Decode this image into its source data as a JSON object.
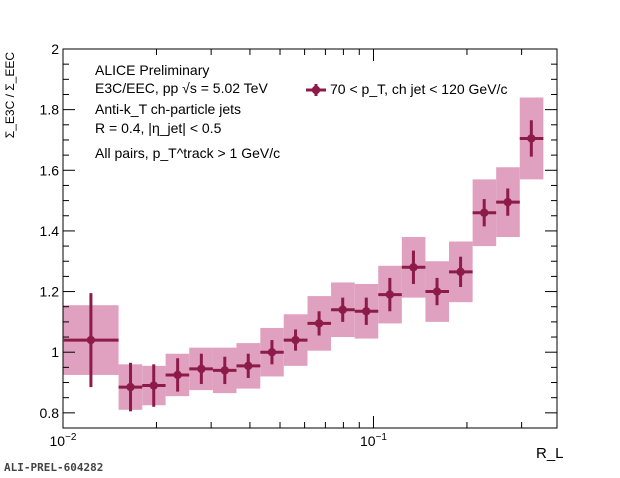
{
  "chart_data": {
    "type": "scatter",
    "x_scale": "log",
    "xlim": [
      0.01,
      0.39
    ],
    "ylim": [
      0.75,
      2.0
    ],
    "xlabel": "R_L",
    "ylabel": "Σ_E3C / Σ_EEC",
    "y_ticks": [
      "0.8",
      "1",
      "1.2",
      "1.4",
      "1.6",
      "1.8",
      "2"
    ],
    "x_ticks": [
      {
        "value": 0.01,
        "base": "10",
        "exp": "−2"
      },
      {
        "value": 0.1,
        "base": "10",
        "exp": "−1"
      }
    ],
    "annotations": {
      "line1": "ALICE Preliminary",
      "line2": "E3C/EEC, pp √s = 5.02 TeV",
      "line3": "Anti-k_T ch-particle jets",
      "line4": "R = 0.4, |η_jet| < 0.5",
      "line5": "All pairs, p_T^track > 1 GeV/c"
    },
    "legend": "70 < p_T, ch jet < 120 GeV/c",
    "watermark": "ALI-PREL-604282",
    "colors": {
      "marker": "#8c1b4a",
      "band": "#e0a0c0"
    },
    "series": [
      {
        "name": "70 < p_T, ch jet < 120 GeV/c",
        "points": [
          {
            "x": 0.0123,
            "xlo": 0.01,
            "xhi": 0.0151,
            "y": 1.04,
            "stat": 0.155,
            "sys": 0.115
          },
          {
            "x": 0.0165,
            "xlo": 0.0151,
            "xhi": 0.018,
            "y": 0.885,
            "stat": 0.08,
            "sys": 0.075
          },
          {
            "x": 0.0196,
            "xlo": 0.018,
            "xhi": 0.0214,
            "y": 0.89,
            "stat": 0.07,
            "sys": 0.065
          },
          {
            "x": 0.0234,
            "xlo": 0.0214,
            "xhi": 0.0255,
            "y": 0.925,
            "stat": 0.055,
            "sys": 0.07
          },
          {
            "x": 0.0279,
            "xlo": 0.0255,
            "xhi": 0.0304,
            "y": 0.945,
            "stat": 0.05,
            "sys": 0.07
          },
          {
            "x": 0.0332,
            "xlo": 0.0304,
            "xhi": 0.0362,
            "y": 0.94,
            "stat": 0.045,
            "sys": 0.075
          },
          {
            "x": 0.0395,
            "xlo": 0.0362,
            "xhi": 0.0432,
            "y": 0.955,
            "stat": 0.04,
            "sys": 0.075
          },
          {
            "x": 0.0471,
            "xlo": 0.0432,
            "xhi": 0.0514,
            "y": 1.0,
            "stat": 0.04,
            "sys": 0.08
          },
          {
            "x": 0.0561,
            "xlo": 0.0514,
            "xhi": 0.0613,
            "y": 1.04,
            "stat": 0.035,
            "sys": 0.085
          },
          {
            "x": 0.0668,
            "xlo": 0.0613,
            "xhi": 0.073,
            "y": 1.095,
            "stat": 0.04,
            "sys": 0.09
          },
          {
            "x": 0.0796,
            "xlo": 0.073,
            "xhi": 0.087,
            "y": 1.14,
            "stat": 0.04,
            "sys": 0.09
          },
          {
            "x": 0.0948,
            "xlo": 0.087,
            "xhi": 0.1036,
            "y": 1.135,
            "stat": 0.045,
            "sys": 0.09
          },
          {
            "x": 0.1129,
            "xlo": 0.1036,
            "xhi": 0.1234,
            "y": 1.19,
            "stat": 0.055,
            "sys": 0.095
          },
          {
            "x": 0.1345,
            "xlo": 0.1234,
            "xhi": 0.147,
            "y": 1.28,
            "stat": 0.055,
            "sys": 0.1
          },
          {
            "x": 0.1602,
            "xlo": 0.147,
            "xhi": 0.1751,
            "y": 1.2,
            "stat": 0.045,
            "sys": 0.1
          },
          {
            "x": 0.1908,
            "xlo": 0.1751,
            "xhi": 0.2086,
            "y": 1.265,
            "stat": 0.05,
            "sys": 0.1
          },
          {
            "x": 0.2273,
            "xlo": 0.2086,
            "xhi": 0.2484,
            "y": 1.46,
            "stat": 0.045,
            "sys": 0.11
          },
          {
            "x": 0.2707,
            "xlo": 0.2484,
            "xhi": 0.2959,
            "y": 1.495,
            "stat": 0.045,
            "sys": 0.115
          },
          {
            "x": 0.3224,
            "xlo": 0.2959,
            "xhi": 0.3525,
            "y": 1.705,
            "stat": 0.06,
            "sys": 0.135
          }
        ]
      }
    ]
  }
}
